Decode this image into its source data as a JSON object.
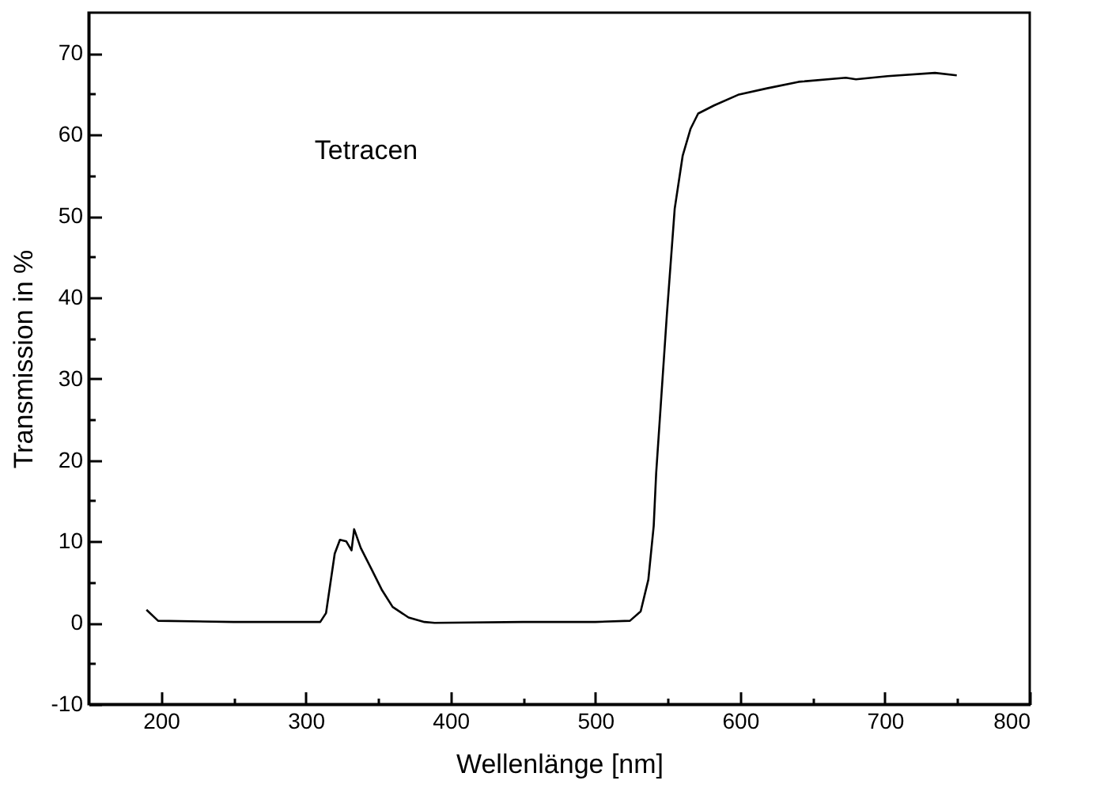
{
  "chart_data": {
    "type": "line",
    "xlabel": "Wellenlänge [nm]",
    "ylabel": "Transmission in %",
    "annotations": [
      "Tetracen"
    ],
    "x": [
      190,
      198,
      250,
      310,
      314,
      320,
      323.6,
      328,
      331.6,
      333.4,
      338,
      345.4,
      352.7,
      360,
      371,
      382,
      389,
      450,
      500,
      523.9,
      531.3,
      536.6,
      540.3,
      542,
      549.4,
      554.8,
      560.3,
      565.7,
      571,
      582,
      598.6,
      618.6,
      640.4,
      673,
      680,
      701.8,
      734.6,
      749.6
    ],
    "series": [
      {
        "color": "#000000",
        "values": [
          1.6,
          0.25,
          0.1,
          0.1,
          1.2,
          8.5,
          10.2,
          10,
          8.9,
          11.5,
          9.2,
          6.6,
          4.0,
          1.95,
          0.65,
          0.1,
          0,
          0.1,
          0.1,
          0.25,
          1.4,
          5.3,
          11.9,
          18.4,
          37.9,
          50.9,
          57.4,
          60.7,
          62.6,
          63.6,
          64.9,
          65.7,
          66.5,
          67.0,
          66.8,
          67.2,
          67.6,
          67.3
        ]
      }
    ],
    "xlim": [
      150,
      800
    ],
    "xticks": [
      200,
      {
        "value": 250,
        "label": null
      },
      300,
      {
        "value": 350,
        "label": null
      },
      400,
      {
        "value": 450,
        "label": null
      },
      500,
      {
        "value": 550,
        "label": null
      },
      600,
      {
        "value": 650,
        "label": null
      },
      700,
      {
        "value": 750,
        "label": null
      },
      800
    ],
    "ylim": [
      -10,
      75
    ],
    "yticks": [
      -10,
      {
        "value": -5,
        "label": null
      },
      0,
      {
        "value": 5,
        "label": null
      },
      10,
      {
        "value": 15,
        "label": null
      },
      20,
      {
        "value": 25,
        "label": null
      },
      30,
      {
        "value": 35,
        "label": null
      },
      40,
      {
        "value": 45,
        "label": null
      },
      50,
      {
        "value": 55,
        "label": null
      },
      60,
      {
        "value": 65,
        "label": null
      },
      70
    ],
    "grid": false,
    "legend": false,
    "marker": "none",
    "line_style": "solid"
  }
}
